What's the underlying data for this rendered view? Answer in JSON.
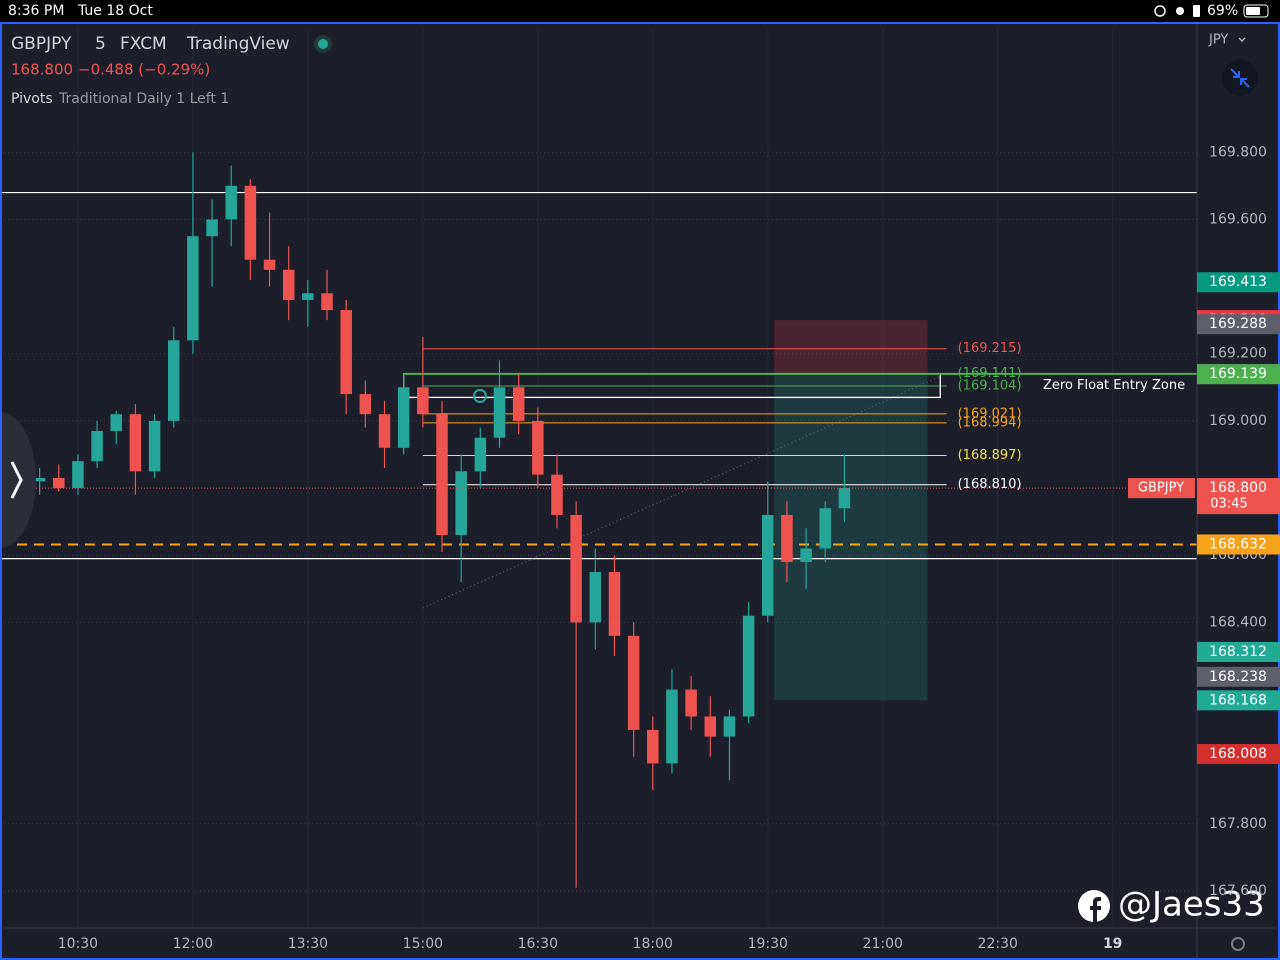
{
  "status_bar": {
    "time": "8:36 PM",
    "date": "Tue 18 Oct",
    "battery": "69%"
  },
  "header": {
    "symbol": "GBPJPY",
    "interval": "5",
    "exchange": "FXCM",
    "platform": "TradingView",
    "price": "168.800",
    "change": "−0.488 (−0.29%)",
    "indicator_name": "Pivots",
    "indicator_params": "Traditional Daily 1 Left 1"
  },
  "currency": "JPY",
  "watermark": "@Jaes33",
  "chart_data": {
    "type": "candlestick",
    "x": [
      "10:00",
      "10:15",
      "10:30",
      "10:45",
      "11:00",
      "11:15",
      "11:30",
      "11:45",
      "12:00",
      "12:15",
      "12:30",
      "12:45",
      "13:00",
      "13:15",
      "13:30",
      "13:45",
      "14:00",
      "14:15",
      "14:30",
      "14:45",
      "15:00",
      "15:15",
      "15:30",
      "15:45",
      "16:00",
      "16:15",
      "16:30",
      "16:45",
      "17:00",
      "17:15",
      "17:30",
      "17:45",
      "18:00",
      "18:15",
      "18:30",
      "18:45",
      "19:00",
      "19:15",
      "19:30",
      "19:45",
      "20:00",
      "20:15",
      "20:30"
    ],
    "open": [
      168.82,
      168.83,
      168.8,
      168.88,
      168.97,
      169.02,
      168.85,
      169.0,
      169.24,
      169.55,
      169.6,
      169.7,
      169.48,
      169.45,
      169.36,
      169.38,
      169.33,
      169.08,
      169.02,
      168.92,
      169.1,
      169.02,
      168.66,
      168.85,
      168.95,
      169.1,
      169.0,
      168.84,
      168.72,
      168.4,
      168.55,
      168.36,
      168.08,
      167.98,
      168.2,
      168.12,
      168.06,
      168.12,
      168.42,
      168.72,
      168.58,
      168.62,
      168.74
    ],
    "high": [
      168.86,
      168.87,
      168.9,
      169.0,
      169.03,
      169.05,
      169.02,
      169.28,
      169.8,
      169.66,
      169.76,
      169.72,
      169.62,
      169.52,
      169.42,
      169.45,
      169.36,
      169.12,
      169.06,
      169.14,
      169.25,
      169.06,
      168.9,
      168.98,
      169.18,
      169.14,
      169.04,
      168.9,
      168.76,
      168.62,
      168.6,
      168.4,
      168.12,
      168.26,
      168.24,
      168.18,
      168.14,
      168.46,
      168.82,
      168.76,
      168.68,
      168.76,
      168.9
    ],
    "low": [
      168.78,
      168.79,
      168.78,
      168.86,
      168.93,
      168.78,
      168.83,
      168.98,
      169.2,
      169.4,
      169.52,
      169.42,
      169.4,
      169.3,
      169.28,
      169.3,
      169.02,
      168.98,
      168.86,
      168.9,
      168.98,
      168.61,
      168.52,
      168.8,
      168.92,
      168.96,
      168.8,
      168.68,
      167.61,
      168.32,
      168.3,
      168.0,
      167.9,
      167.95,
      168.08,
      168.0,
      167.93,
      168.1,
      168.4,
      168.52,
      168.5,
      168.58,
      168.7
    ],
    "close": [
      168.83,
      168.8,
      168.88,
      168.97,
      169.02,
      168.85,
      169.0,
      169.24,
      169.55,
      169.6,
      169.7,
      169.48,
      169.45,
      169.36,
      169.38,
      169.33,
      169.08,
      169.02,
      168.92,
      169.1,
      169.02,
      168.66,
      168.85,
      168.95,
      169.1,
      169.0,
      168.84,
      168.72,
      168.4,
      168.55,
      168.36,
      168.08,
      167.98,
      168.2,
      168.12,
      168.06,
      168.12,
      168.42,
      168.72,
      168.58,
      168.62,
      168.74,
      168.8
    ],
    "up_color": "#26a69a",
    "down_color": "#ef5350",
    "xlim": [
      "09:29",
      "25:06"
    ],
    "xticks": [
      "10:30",
      "12:00",
      "13:30",
      "15:00",
      "16:30",
      "18:00",
      "19:30",
      "21:00",
      "22:30",
      {
        "value": "24:00",
        "label": "19"
      }
    ],
    "ylim": [
      167.49,
      170.17
    ],
    "yticks": [
      {
        "value": 169.8,
        "label": "169.800"
      },
      {
        "value": 169.6,
        "label": "169.600"
      },
      {
        "value": 169.2,
        "label": "169.200"
      },
      {
        "value": 169.0,
        "label": "169.000"
      },
      {
        "value": 168.6,
        "label": "168.600"
      },
      {
        "value": 168.4,
        "label": "168.400"
      },
      {
        "value": 167.8,
        "label": "167.800"
      },
      {
        "value": 167.6,
        "label": "167.600"
      }
    ],
    "grid": true,
    "hlines": [
      {
        "value": 169.68,
        "color": "#ffffff",
        "dashed": false
      },
      {
        "value": 168.59,
        "color": "#ffffff",
        "dashed": false
      },
      {
        "value": 168.632,
        "color": "#f7a21b",
        "dashed": true
      }
    ],
    "levels_range": [
      "15:00",
      "21:50"
    ],
    "levels": [
      {
        "value": 169.215,
        "label": "(169.215)",
        "color": "#ef5350"
      },
      {
        "value": 169.141,
        "label": "(169.141)",
        "color": "#4caf50"
      },
      {
        "value": 169.104,
        "label": "(169.104)",
        "color": "#4caf50"
      },
      {
        "value": 169.021,
        "label": "(169.021)",
        "color": "#f7a21b"
      },
      {
        "value": 168.994,
        "label": "(168.994)",
        "color": "#f7a21b"
      },
      {
        "value": 168.897,
        "label": "(168.897)",
        "color": "#f5e050"
      },
      {
        "value": 168.81,
        "label": "(168.810)",
        "color": "#ffffff"
      }
    ],
    "zone": {
      "label": "Zero Float Entry Zone",
      "top": 169.14,
      "bottom": 169.07,
      "start": "14:45",
      "end": "21:45",
      "color": "#4caf50"
    },
    "position": {
      "start": "19:35",
      "end": "21:35",
      "entry": 169.14,
      "stop": 169.3,
      "target": 168.168
    },
    "trendline": {
      "start": "15:00",
      "start_value": 168.443,
      "end": "21:45",
      "end_value": 169.133
    },
    "last_price": {
      "value": 168.8,
      "label": "168.800",
      "countdown": "03:45",
      "symbol_tag": "GBPJPY",
      "color": "#ef5350"
    },
    "price_badges": [
      {
        "value": 169.413,
        "label": "169.413",
        "color": "#089981"
      },
      {
        "value": 169.3,
        "label": "169.300",
        "color": "#f23645"
      },
      {
        "value": 169.288,
        "label": "169.288",
        "color": "#5d606b"
      },
      {
        "value": 169.14,
        "label": "169.140",
        "color": "#5d606b"
      },
      {
        "value": 169.139,
        "label": "169.139",
        "color": "#4caf50"
      },
      {
        "value": 168.632,
        "label": "168.632",
        "color": "#f7a21b"
      },
      {
        "value": 168.312,
        "label": "168.312",
        "color": "#22ab94"
      },
      {
        "value": 168.238,
        "label": "168.238",
        "color": "#5d606b"
      },
      {
        "value": 168.168,
        "label": "168.168",
        "color": "#22ab94"
      },
      {
        "value": 168.008,
        "label": "168.008",
        "color": "#d32f2f"
      }
    ]
  }
}
